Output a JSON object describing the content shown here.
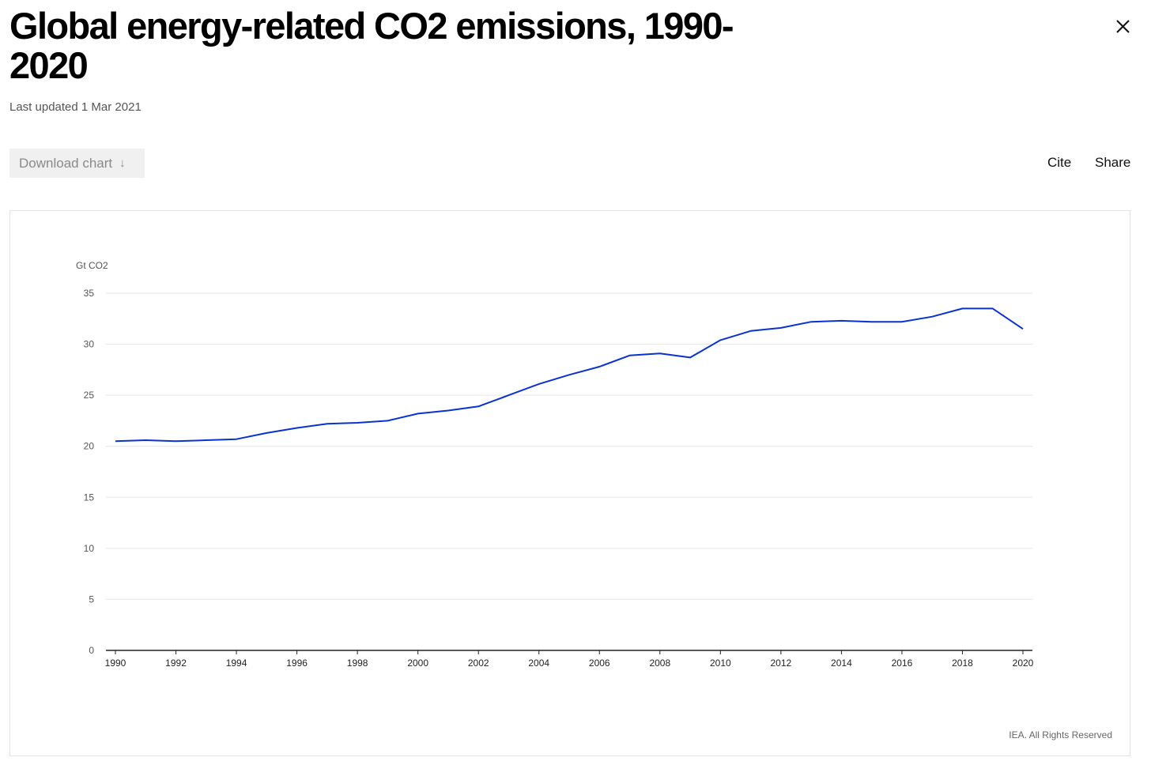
{
  "header": {
    "title": "Global energy-related CO2 emissions, 1990-2020",
    "last_updated": "Last updated 1 Mar 2021",
    "close_icon": "close-icon"
  },
  "toolbar": {
    "download_label": "Download chart",
    "download_icon": "arrow-down-icon",
    "cite_label": "Cite",
    "share_label": "Share"
  },
  "footer": {
    "credit": "IEA. All Rights Reserved"
  },
  "colors": {
    "series_line": "#0a32d2",
    "gridline": "#e6e6e6",
    "axis": "#222222"
  },
  "chart_data": {
    "type": "line",
    "title": "",
    "xlabel": "",
    "ylabel": "Gt CO2",
    "xlim": [
      1990,
      2020
    ],
    "ylim": [
      0,
      35
    ],
    "x_ticks": [
      "1990",
      "1992",
      "1994",
      "1996",
      "1998",
      "2000",
      "2002",
      "2004",
      "2006",
      "2008",
      "2010",
      "2012",
      "2014",
      "2016",
      "2018",
      "2020"
    ],
    "y_ticks": [
      "0",
      "5",
      "10",
      "15",
      "20",
      "25",
      "30",
      "35"
    ],
    "grid": true,
    "legend": "none",
    "x": [
      1990,
      1991,
      1992,
      1993,
      1994,
      1995,
      1996,
      1997,
      1998,
      1999,
      2000,
      2001,
      2002,
      2003,
      2004,
      2005,
      2006,
      2007,
      2008,
      2009,
      2010,
      2011,
      2012,
      2013,
      2014,
      2015,
      2016,
      2017,
      2018,
      2019,
      2020
    ],
    "series": [
      {
        "values": [
          20.5,
          20.6,
          20.5,
          20.6,
          20.7,
          21.3,
          21.8,
          22.2,
          22.3,
          22.5,
          23.2,
          23.5,
          23.9,
          25.0,
          26.1,
          27.0,
          27.8,
          28.9,
          29.1,
          28.7,
          30.4,
          31.3,
          31.6,
          32.2,
          32.3,
          32.2,
          32.2,
          32.7,
          33.5,
          33.5,
          31.5
        ]
      }
    ]
  }
}
